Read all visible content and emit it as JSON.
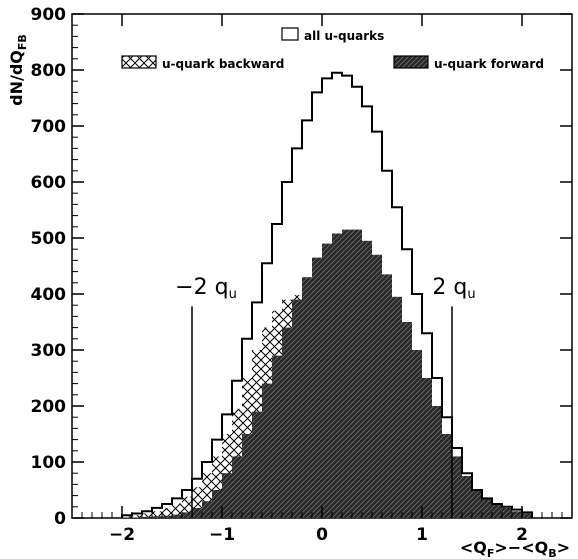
{
  "chart_data": {
    "type": "histogram",
    "xlabel": "<Q_F>−<Q_B>",
    "ylabel": "dN/dQ_FB",
    "xlim": [
      -2.5,
      2.5
    ],
    "ylim": [
      0,
      900
    ],
    "x_ticks": [
      -2,
      -1,
      0,
      1,
      2
    ],
    "y_ticks": [
      0,
      100,
      200,
      300,
      400,
      500,
      600,
      700,
      800,
      900
    ],
    "bin_width": 0.1,
    "bin_edges_start": -2.0,
    "legend": [
      {
        "label": "all u-quarks",
        "style": "open"
      },
      {
        "label": "u-quark backward",
        "style": "cross-hatch"
      },
      {
        "label": "u-quark forward",
        "style": "dark-hatch"
      }
    ],
    "series": [
      {
        "name": "all u-quarks",
        "values": [
          5,
          8,
          12,
          18,
          25,
          35,
          50,
          70,
          100,
          140,
          185,
          245,
          320,
          385,
          455,
          525,
          600,
          660,
          710,
          760,
          785,
          795,
          790,
          770,
          735,
          690,
          620,
          555,
          480,
          400,
          330,
          250,
          180,
          125,
          80,
          50,
          35,
          25,
          20,
          15,
          10
        ]
      },
      {
        "name": "u-quark backward",
        "values": [
          3,
          5,
          8,
          12,
          18,
          26,
          38,
          55,
          80,
          110,
          150,
          195,
          250,
          300,
          340,
          370,
          390,
          398,
          395,
          385,
          360,
          330,
          290,
          245,
          200,
          160,
          125,
          95,
          70,
          50,
          35,
          25,
          18,
          12,
          8,
          6,
          4,
          3,
          2,
          1,
          1
        ]
      },
      {
        "name": "u-quark forward",
        "values": [
          1,
          1,
          2,
          3,
          4,
          6,
          10,
          18,
          30,
          50,
          80,
          110,
          150,
          190,
          240,
          290,
          340,
          390,
          430,
          465,
          490,
          508,
          515,
          515,
          495,
          470,
          435,
          395,
          350,
          300,
          250,
          200,
          150,
          110,
          75,
          50,
          35,
          25,
          18,
          12,
          8
        ]
      }
    ],
    "annotations": [
      {
        "text": "−2 q",
        "subscript": "u",
        "x": -1.3
      },
      {
        "text": "2 q",
        "subscript": "u",
        "x": 1.3
      }
    ]
  }
}
